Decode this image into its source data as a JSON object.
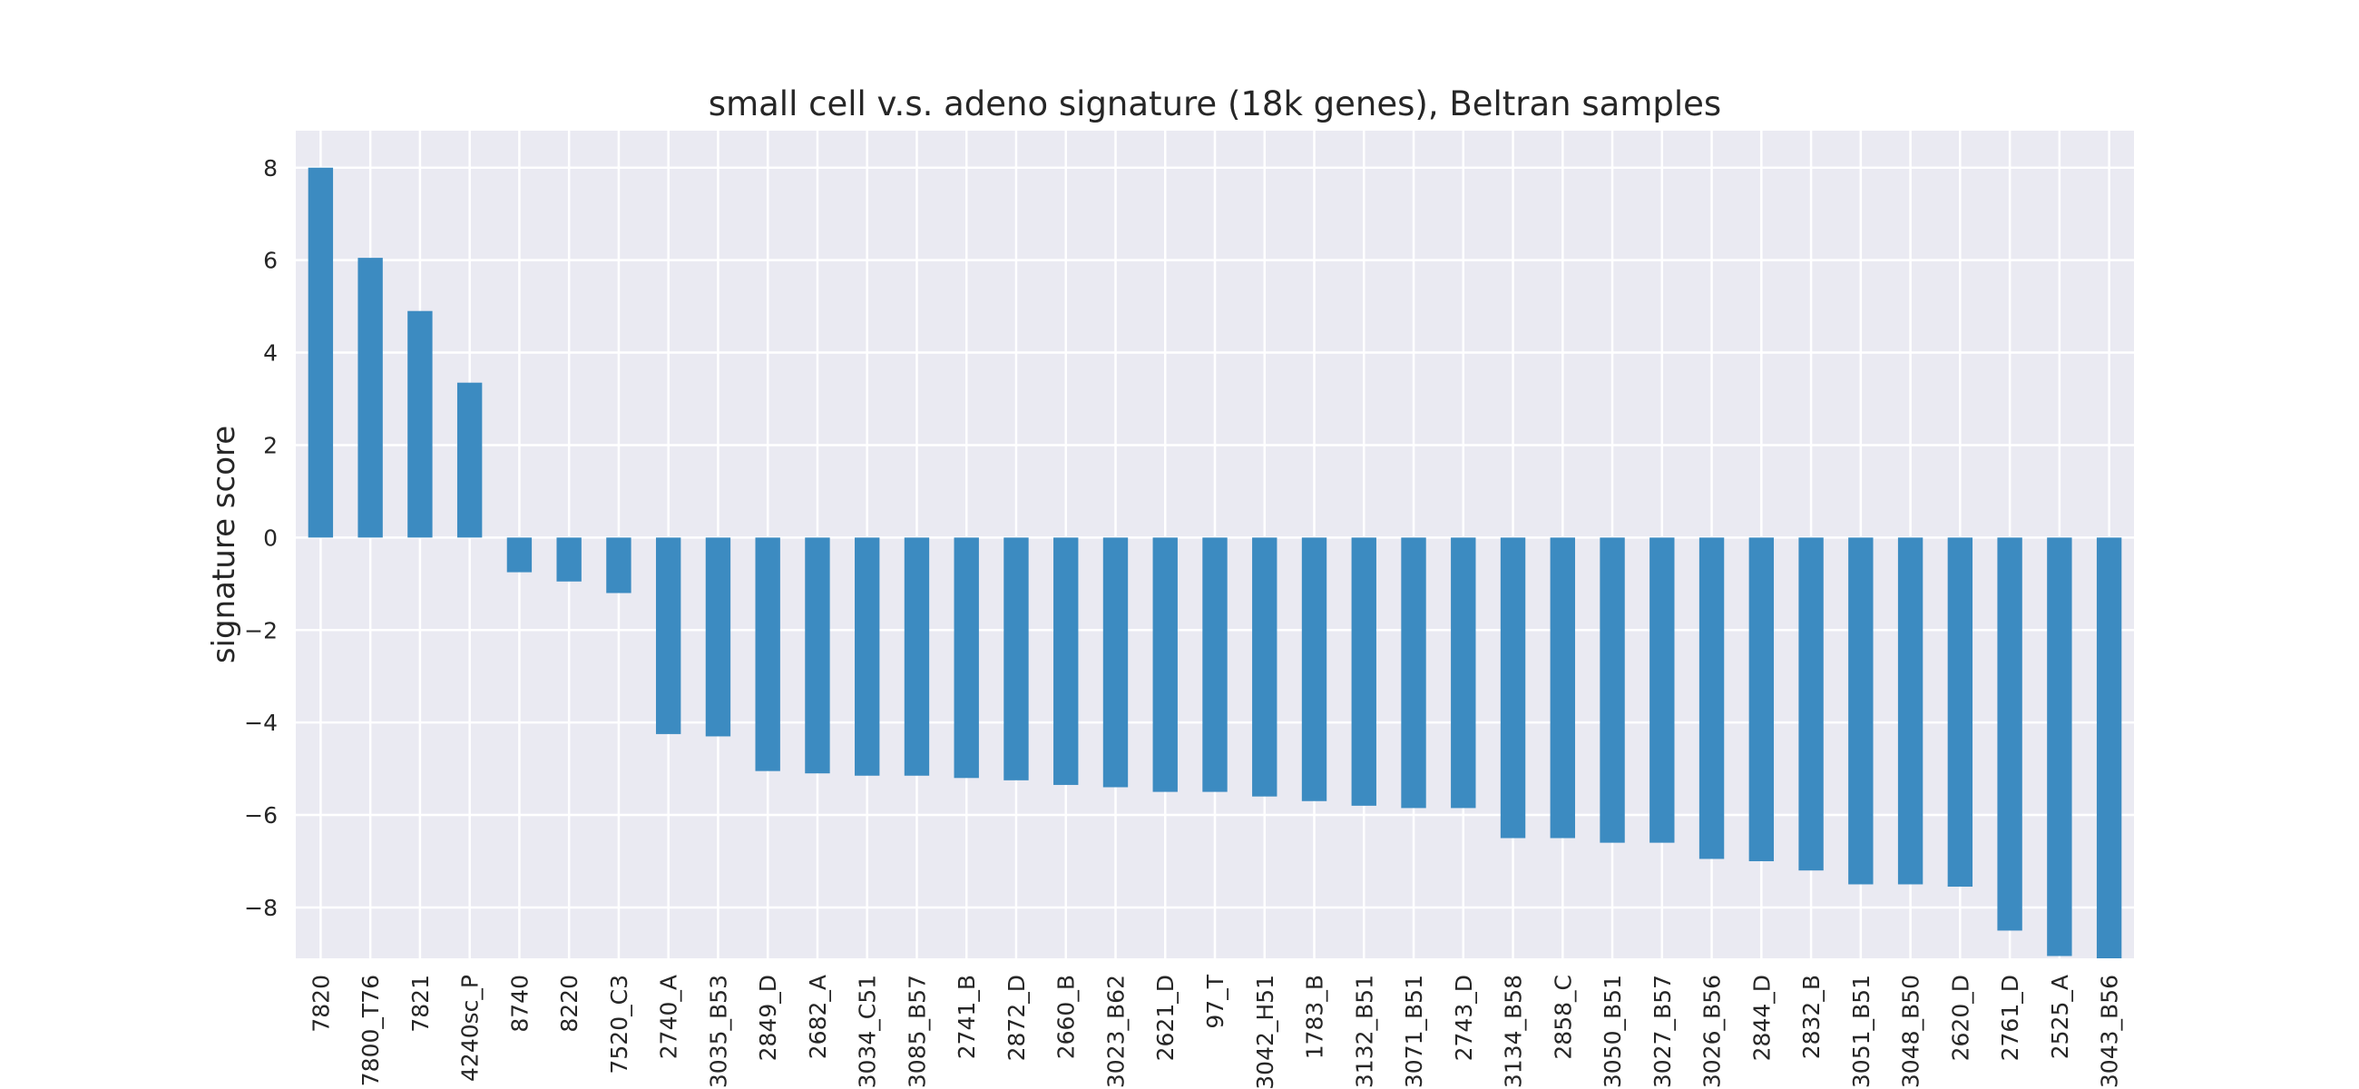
{
  "chart_data": {
    "type": "bar",
    "title": "small cell v.s. adeno signature (18k genes), Beltran samples",
    "xlabel": "",
    "ylabel": "signature score",
    "ylim": [
      -9.1,
      8.8
    ],
    "yticks": [
      8,
      6,
      4,
      2,
      0,
      -2,
      -4,
      -6,
      -8
    ],
    "ytick_labels": [
      "8",
      "6",
      "4",
      "2",
      "0",
      "−2",
      "−4",
      "−6",
      "−8"
    ],
    "grid": true,
    "legend": "none",
    "bar_color": "#3c8bc1",
    "plot_background": "#eaeaf2",
    "grid_color": "#ffffff",
    "categories": [
      "7820",
      "7800_T76",
      "7821",
      "4240sc_P",
      "8740",
      "8220",
      "7520_C3",
      "2740_A",
      "3035_B53",
      "2849_D",
      "2682_A",
      "3034_C51",
      "3085_B57",
      "2741_B",
      "2872_D",
      "2660_B",
      "3023_B62",
      "2621_D",
      "97_T",
      "3042_H51",
      "1783_B",
      "3132_B51",
      "3071_B51",
      "2743_D",
      "3134_B58",
      "2858_C",
      "3050_B51",
      "3027_B57",
      "3026_B56",
      "2844_D",
      "2832_B",
      "3051_B51",
      "3048_B50",
      "2620_D",
      "2761_D",
      "2525_A",
      "3043_B56"
    ],
    "values": [
      8.0,
      6.05,
      4.9,
      3.35,
      -0.75,
      -0.95,
      -1.2,
      -4.25,
      -4.3,
      -5.05,
      -5.1,
      -5.15,
      -5.15,
      -5.2,
      -5.25,
      -5.35,
      -5.4,
      -5.5,
      -5.5,
      -5.6,
      -5.7,
      -5.8,
      -5.85,
      -5.85,
      -6.5,
      -6.5,
      -6.6,
      -6.6,
      -6.95,
      -7.0,
      -7.2,
      -7.5,
      -7.5,
      -7.55,
      -8.5,
      -9.05,
      -9.15
    ]
  }
}
